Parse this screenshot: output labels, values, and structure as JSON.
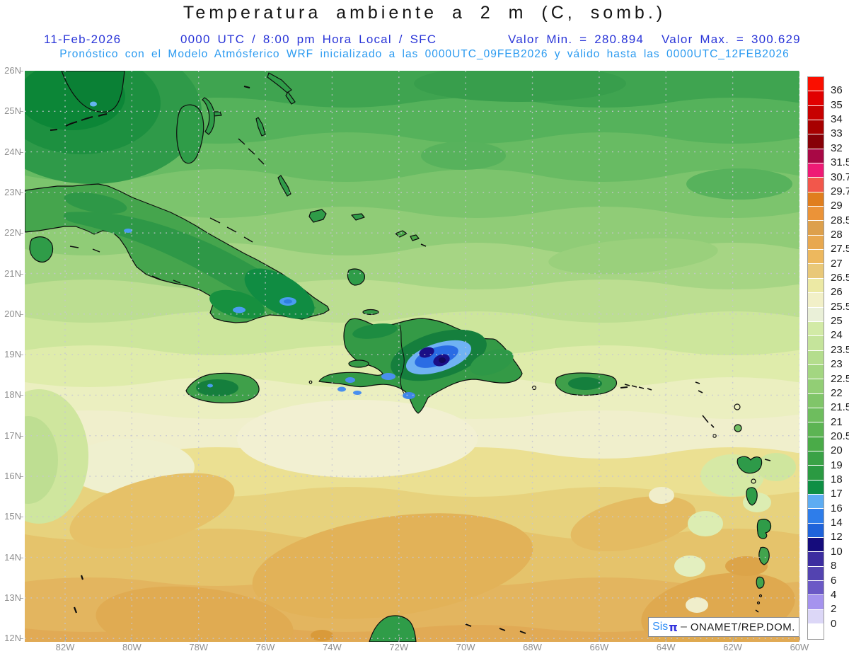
{
  "title": "Temperatura ambiente a 2 m (C, somb.)",
  "header": {
    "date": "11-Feb-2026",
    "run_info": "0000 UTC / 8:00 pm Hora Local / SFC",
    "valor_min": "Valor Min. = 280.894",
    "valor_max": "Valor Max. = 300.629",
    "forecast_line": "Pronóstico con el Modelo Atmósferico WRF inicializado a las 0000UTC_09FEB2026 y válido hasta las  0000UTC_12FEB2026"
  },
  "map": {
    "lat_labels": [
      "26N",
      "25N",
      "24N",
      "23N",
      "22N",
      "21N",
      "20N",
      "19N",
      "18N",
      "17N",
      "16N",
      "15N",
      "14N",
      "13N",
      "12N"
    ],
    "lon_labels": [
      "82W",
      "80W",
      "78W",
      "76W",
      "74W",
      "72W",
      "70W",
      "68W",
      "66W",
      "64W",
      "62W",
      "60W"
    ]
  },
  "colorbar": {
    "segments": [
      {
        "color": "#fa0f00",
        "label": "36"
      },
      {
        "color": "#e10000",
        "label": "35"
      },
      {
        "color": "#c70000",
        "label": "34"
      },
      {
        "color": "#a70000",
        "label": "33"
      },
      {
        "color": "#870007",
        "label": "32"
      },
      {
        "color": "#a80845",
        "label": "31.5"
      },
      {
        "color": "#ee1a75",
        "label": "30.7"
      },
      {
        "color": "#f2574b",
        "label": "29.7"
      },
      {
        "color": "#e07e1e",
        "label": "29"
      },
      {
        "color": "#eb9338",
        "label": "28.5"
      },
      {
        "color": "#dda04c",
        "label": "28"
      },
      {
        "color": "#e8a84f",
        "label": "27.5"
      },
      {
        "color": "#edb85e",
        "label": "27"
      },
      {
        "color": "#e9c878",
        "label": "26.5"
      },
      {
        "color": "#ece9a4",
        "label": "26"
      },
      {
        "color": "#f2f0c8",
        "label": "25.5"
      },
      {
        "color": "#eaf0d8",
        "label": "25"
      },
      {
        "color": "#d2eaa6",
        "label": "24"
      },
      {
        "color": "#c5e49b",
        "label": "23.5"
      },
      {
        "color": "#b4dd8d",
        "label": "23"
      },
      {
        "color": "#a3d681",
        "label": "22.5"
      },
      {
        "color": "#92ce75",
        "label": "22"
      },
      {
        "color": "#80c569",
        "label": "21.5"
      },
      {
        "color": "#6ebd5e",
        "label": "21"
      },
      {
        "color": "#5cb453",
        "label": "20.5"
      },
      {
        "color": "#4aab48",
        "label": "20"
      },
      {
        "color": "#3aa246",
        "label": "19"
      },
      {
        "color": "#2b9a42",
        "label": "18"
      },
      {
        "color": "#0e8f44",
        "label": "17"
      },
      {
        "color": "#5dacf2",
        "label": "16"
      },
      {
        "color": "#2e7dea",
        "label": "14"
      },
      {
        "color": "#1f63da",
        "label": "12"
      },
      {
        "color": "#150c7c",
        "label": "10"
      },
      {
        "color": "#3c2da0",
        "label": "8"
      },
      {
        "color": "#5343b0",
        "label": "6"
      },
      {
        "color": "#6b59c6",
        "label": "4"
      },
      {
        "color": "#a593ee",
        "label": "2"
      },
      {
        "color": "#dcd7f7",
        "label": "0"
      },
      {
        "color": "#ffffff",
        "label": null
      }
    ]
  },
  "attribution": {
    "prefix": "Sis",
    "pi": "π",
    "separator": "–",
    "org": "ONAMET/REP.DOM."
  },
  "colors": {
    "header_primary": "#2a35d8",
    "header_secondary": "#2a9af0",
    "axis_label": "#8f8f8f",
    "coastline": "#0d0d0d"
  }
}
